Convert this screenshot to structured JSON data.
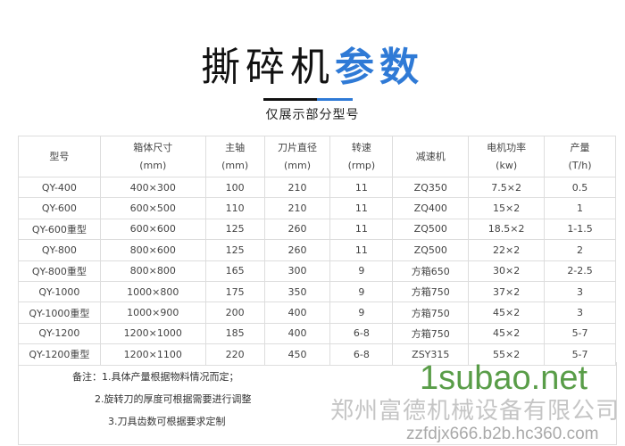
{
  "title": {
    "main": "撕碎机",
    "accent": "参数",
    "accent_color": "#2f7ad6"
  },
  "subtitle": "仅展示部分型号",
  "table": {
    "headers": [
      [
        "型号",
        ""
      ],
      [
        "箱体尺寸",
        "(mm)"
      ],
      [
        "主轴",
        "(mm)"
      ],
      [
        "刀片直径",
        "(mm)"
      ],
      [
        "转速",
        "(rmp)"
      ],
      [
        "减速机",
        ""
      ],
      [
        "电机功率",
        "(kw)"
      ],
      [
        "产量",
        "(T/h)"
      ]
    ],
    "rows": [
      [
        "QY-400",
        "400×300",
        "100",
        "210",
        "11",
        "ZQ350",
        "7.5×2",
        "0.5"
      ],
      [
        "QY-600",
        "600×500",
        "110",
        "210",
        "11",
        "ZQ400",
        "15×2",
        "1"
      ],
      [
        "QY-600重型",
        "600×600",
        "125",
        "260",
        "11",
        "ZQ500",
        "18.5×2",
        "1-1.5"
      ],
      [
        "QY-800",
        "800×600",
        "125",
        "260",
        "11",
        "ZQ500",
        "22×2",
        "2"
      ],
      [
        "QY-800重型",
        "800×800",
        "165",
        "300",
        "9",
        "方箱650",
        "30×2",
        "2-2.5"
      ],
      [
        "QY-1000",
        "1000×800",
        "175",
        "350",
        "9",
        "方箱750",
        "37×2",
        "3"
      ],
      [
        "QY-1000重型",
        "1000×900",
        "200",
        "400",
        "9",
        "方箱750",
        "45×2",
        "3"
      ],
      [
        "QY-1200",
        "1200×1000",
        "185",
        "400",
        "6-8",
        "方箱750",
        "45×2",
        "5-7"
      ],
      [
        "QY-1200重型",
        "1200×1100",
        "220",
        "450",
        "6-8",
        "ZSY315",
        "55×2",
        "5-7"
      ]
    ]
  },
  "notes": [
    "备注：1.具体产量根据物料情况而定；",
    "2.旋转刀的厚度可根据需要进行调整",
    "3.刀具齿数可根据要求定制"
  ],
  "watermark": {
    "company": "郑州富德机械设备有限公司",
    "site": "1subao.net",
    "url": "zzfdjx666.b2b.hc360.com"
  }
}
